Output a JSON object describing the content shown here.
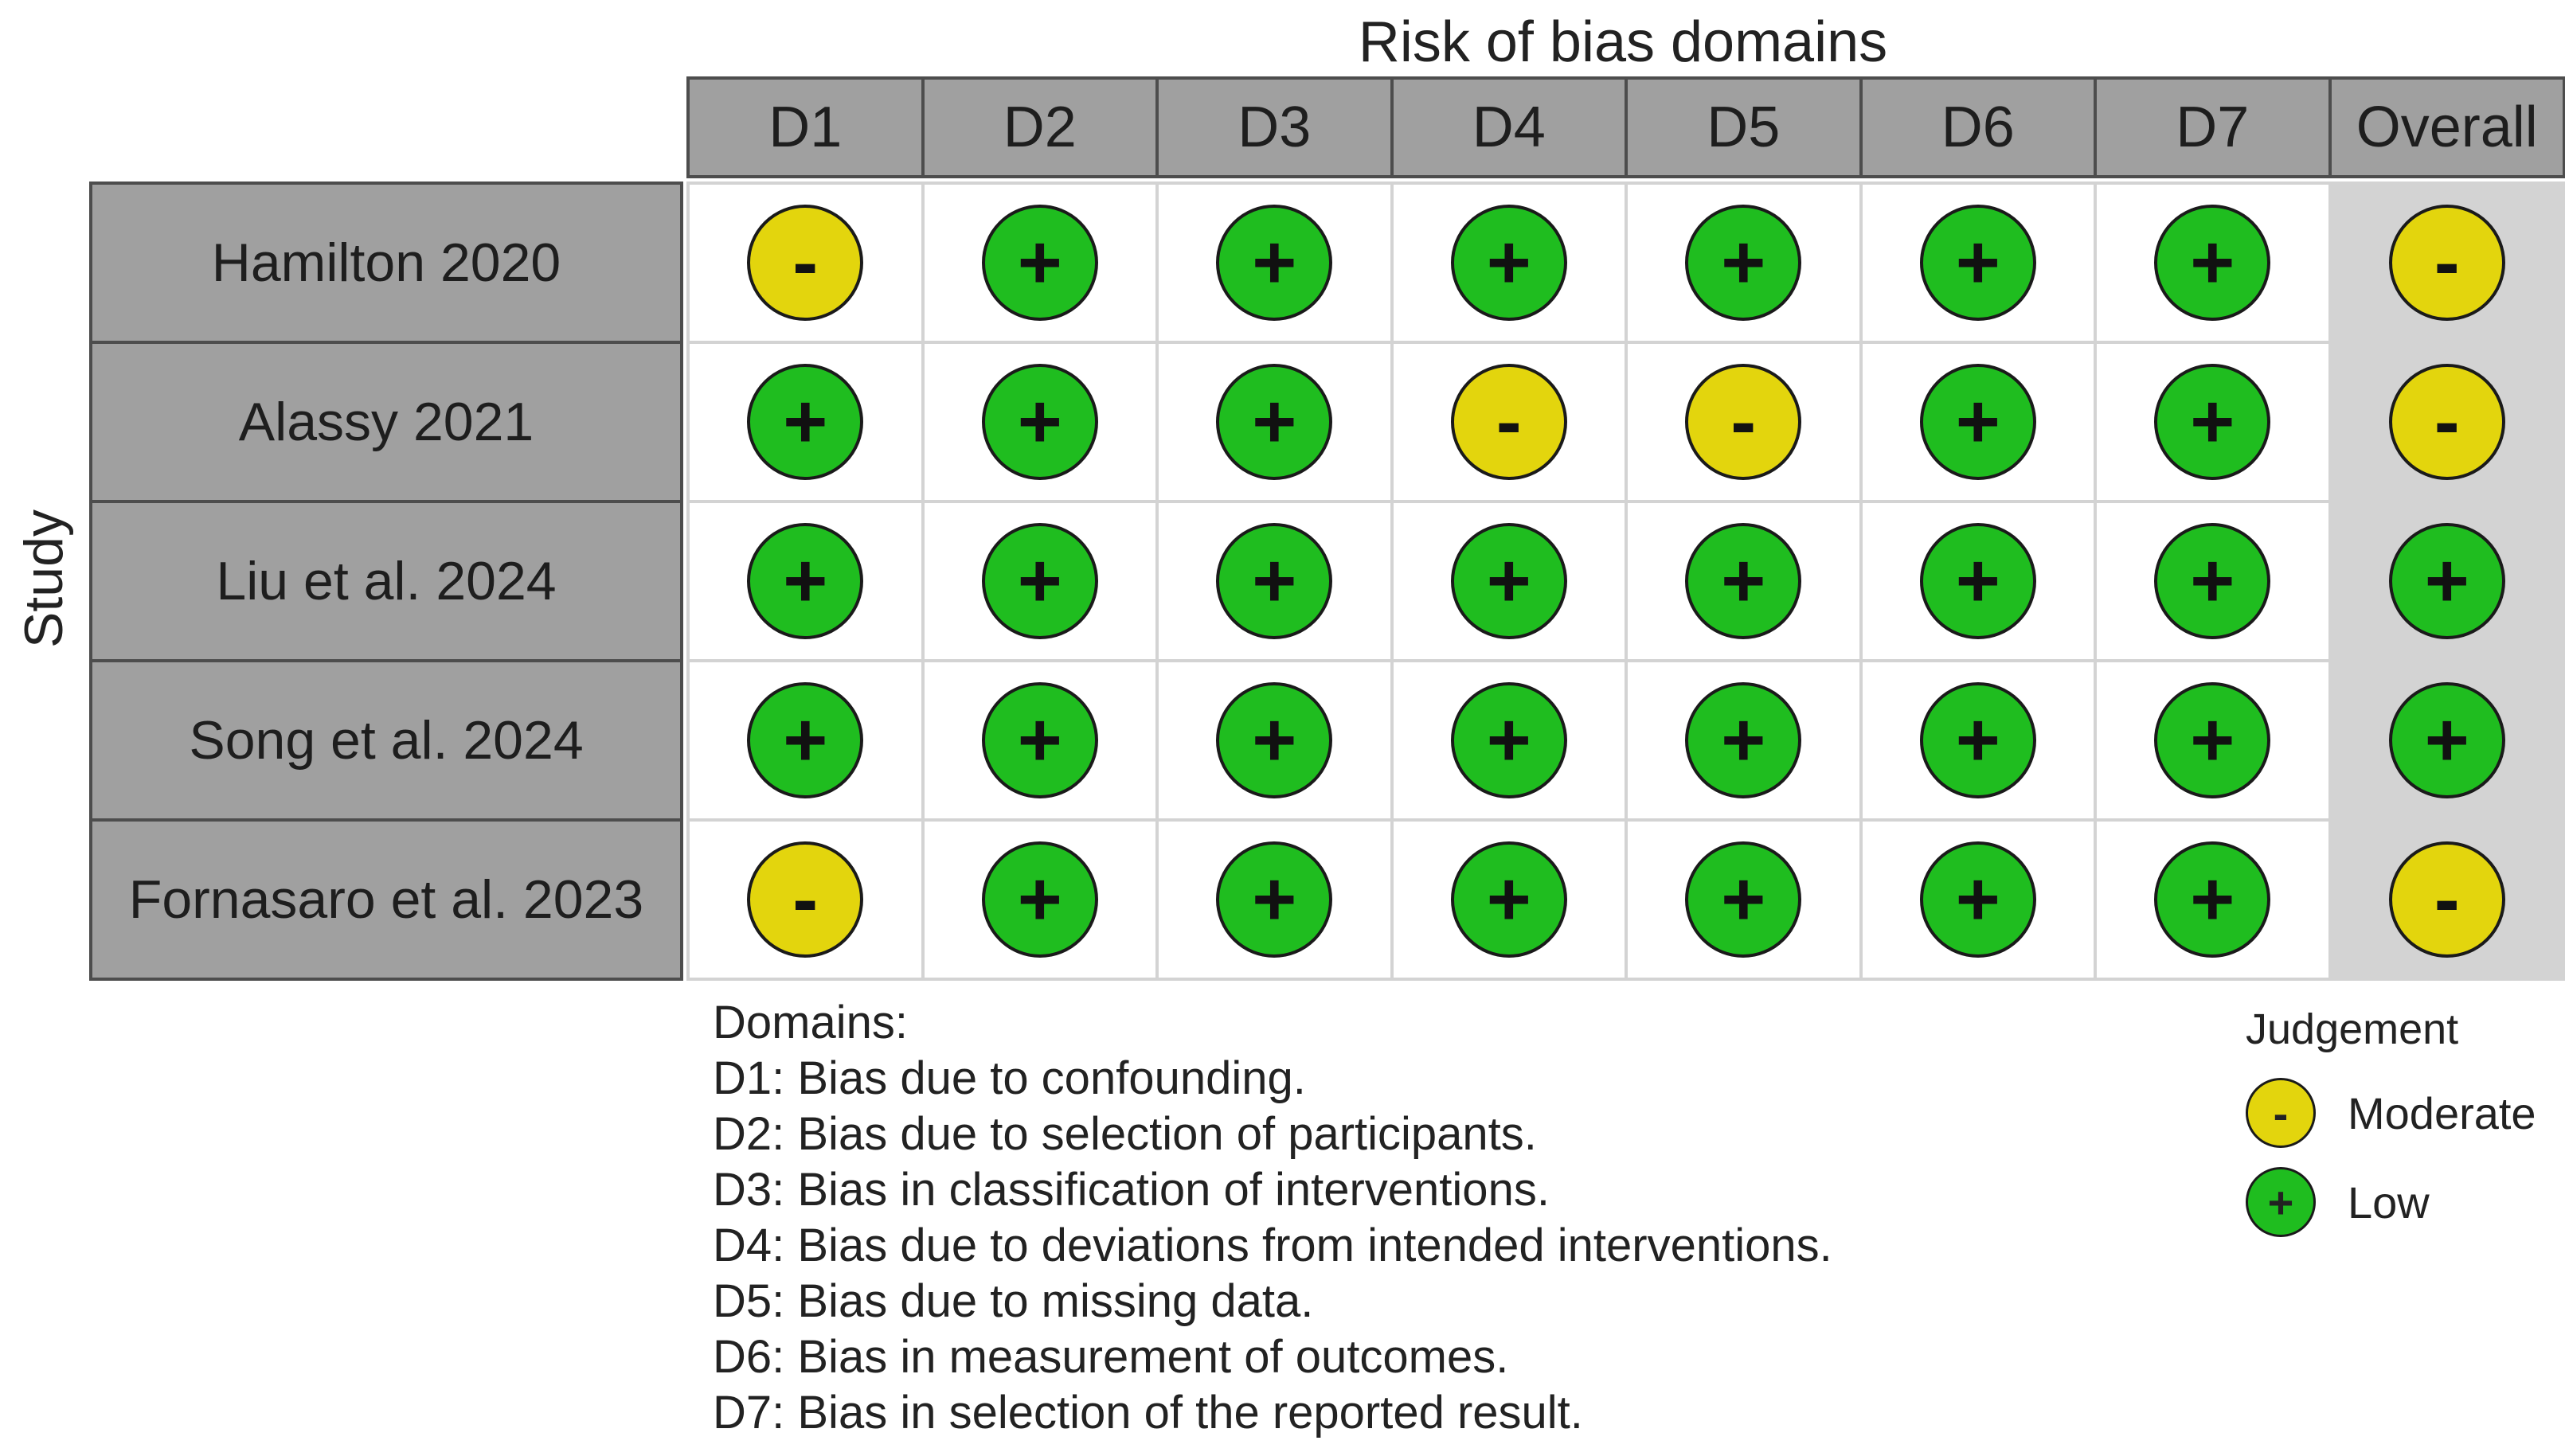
{
  "title": "Risk of bias domains",
  "y_axis_label": "Study",
  "columns": [
    "D1",
    "D2",
    "D3",
    "D4",
    "D5",
    "D6",
    "D7",
    "Overall"
  ],
  "colors": {
    "moderate": "#e3d50d",
    "low": "#1fbd1f"
  },
  "symbols": {
    "moderate": "-",
    "low": "+"
  },
  "studies": [
    {
      "name": "Hamilton 2020",
      "judgements": [
        "moderate",
        "low",
        "low",
        "low",
        "low",
        "low",
        "low",
        "moderate"
      ]
    },
    {
      "name": "Alassy 2021",
      "judgements": [
        "low",
        "low",
        "low",
        "moderate",
        "moderate",
        "low",
        "low",
        "moderate"
      ]
    },
    {
      "name": "Liu et al. 2024",
      "judgements": [
        "low",
        "low",
        "low",
        "low",
        "low",
        "low",
        "low",
        "low"
      ]
    },
    {
      "name": "Song et al. 2024",
      "judgements": [
        "low",
        "low",
        "low",
        "low",
        "low",
        "low",
        "low",
        "low"
      ]
    },
    {
      "name": "Fornasaro et al. 2023",
      "judgements": [
        "moderate",
        "low",
        "low",
        "low",
        "low",
        "low",
        "low",
        "moderate"
      ]
    }
  ],
  "domains_heading": "Domains:",
  "domains": [
    "D1: Bias due to confounding.",
    "D2: Bias due to selection of participants.",
    "D3: Bias in classification of interventions.",
    "D4: Bias due to deviations from intended interventions.",
    "D5: Bias due to missing data.",
    "D6: Bias in measurement of outcomes.",
    "D7: Bias in selection of the reported result."
  ],
  "legend": {
    "title": "Judgement",
    "items": [
      {
        "key": "moderate",
        "label": "Moderate"
      },
      {
        "key": "low",
        "label": "Low"
      }
    ]
  }
}
